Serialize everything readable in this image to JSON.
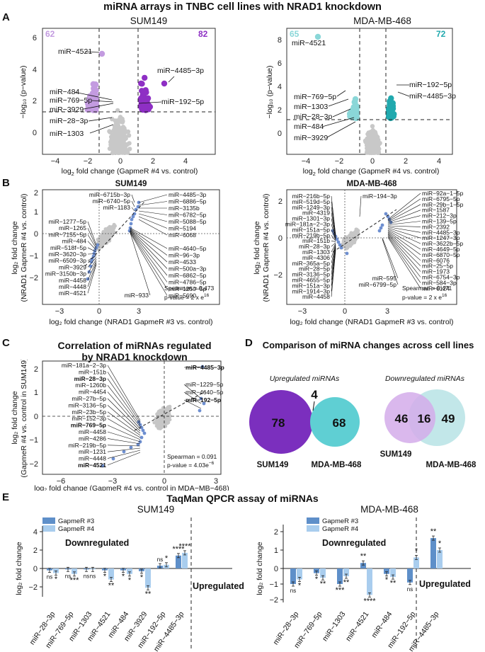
{
  "figure_title": "miRNA arrays in TNBC cell lines with NRAD1 knockdown",
  "panel_labels": {
    "A": "A",
    "B": "B",
    "C": "C",
    "D": "D",
    "E": "E"
  },
  "panelA": {
    "sum149": {
      "title": "SUM149",
      "count_down": "62",
      "count_up": "82",
      "xlabel_a": "log",
      "xlabel_sub": "2",
      "xlabel_b": " fold change (GapmeR #4 vs. control)",
      "ylabel": "−log₁₀ (p−value)",
      "xticks": [
        "−4",
        "−2",
        "0",
        "2",
        "4"
      ],
      "yticks": [
        "0",
        "2",
        "4",
        "6"
      ],
      "labels": [
        "miR−4521",
        "miR−4485−3p",
        "miR−484",
        "miR−769−5p",
        "miR−3929",
        "miR−192−5p",
        "miR−28−3p",
        "miR−1303"
      ],
      "colors": {
        "down": "#C39BE0",
        "up": "#8E2FC4"
      }
    },
    "mda": {
      "title": "MDA-MB-468",
      "count_down": "65",
      "count_up": "72",
      "xlabel_a": "log",
      "xlabel_sub": "2",
      "xlabel_b": " fold change (GapmeR #4 vs. control)",
      "ylabel": "−log₁₀ (p−value)",
      "xticks": [
        "−4",
        "−2",
        "0",
        "2",
        "4"
      ],
      "yticks": [
        "0",
        "2",
        "4",
        "6",
        "8"
      ],
      "labels": [
        "miR−4521",
        "miR−192−5p",
        "miR−4485−3p",
        "miR−769−5p",
        "miR−1303",
        "miR−28−3p",
        "miR−484",
        "miR−3929"
      ],
      "colors": {
        "down": "#8AD7D8",
        "up": "#21A9AE"
      }
    }
  },
  "panelB": {
    "sum149": {
      "title": "SUM149",
      "ylabel1": "log₂ fold change",
      "ylabel2": "(NRAD1 GapmeR #4 vs. control)",
      "xlabel": "log₂ fold change (NRAD1 GapmeR #3 vs. control)",
      "xticks": [
        "−3",
        "0",
        "3"
      ],
      "yticks": [
        "2",
        "1",
        "0",
        "−1",
        "−2"
      ],
      "stats1": "Spearman = 0.473",
      "stats2": "p-value = 2 x e",
      "stats_exp": "16",
      "labels_left": [
        "miR−6715b−3p",
        "miR−6740−5p",
        "miR−1183",
        "miR−1277−5p",
        "miR−1265",
        "miR−7155−5p",
        "miR−484",
        "miR−518f−5p",
        "miR−3620−3p",
        "miR−6509−3p",
        "miR−3929",
        "miR−3150b−3p",
        "miR−4458",
        "miR−4448",
        "miR−4521"
      ],
      "labels_right": [
        "miR−4485−3p",
        "miR−6886−5p",
        "miR−3135b",
        "miR−6782−5p",
        "miR−5088−5p",
        "miR−5194",
        "miR−6068",
        "miR−4640−5p",
        "miR−96−3p",
        "miR−4533",
        "miR−500a−3p",
        "miR−6862−5p",
        "miR−4786−5p",
        "miR−1250−5p",
        "miR−5690",
        "miR−933"
      ]
    },
    "mda": {
      "title": "MDA-MB-468",
      "ylabel1": "log₂ fold change",
      "ylabel2": "(NRAD1 GapmeR #4 vs. control)",
      "xlabel": "log₂ fold change (NRAD1 GapmeR #3 vs. control)",
      "xticks": [
        "−3",
        "0",
        "3"
      ],
      "yticks": [
        "2",
        "0",
        "−2"
      ],
      "stats1": "Spearman = 0.471",
      "stats2": "p-value = 2 x e",
      "stats_exp": "16",
      "labels_left": [
        "miR−216b−5p",
        "miR−519d−5p",
        "miR−1249−3p",
        "miR−4319",
        "miR−1301−3p",
        "miR−181a−2−3p",
        "miR−151a−5p",
        "miR−219b−5p",
        "miR−151b",
        "miR−28−3p",
        "miR−1303",
        "miR−4306",
        "miR−365a−5p",
        "miR−28−5p",
        "miR−3136−5p",
        "miR−4655−5p",
        "miR−151a−3p",
        "miR−1914−3p",
        "miR−4458"
      ],
      "labels_mid": [
        "miR−194−3p",
        "miR−595",
        "miR−6799−5p"
      ],
      "labels_right": [
        "miR−92a−1−5p",
        "miR−6795−5p",
        "miR−29b−1−5p",
        "miR−1587",
        "miR−212−3p",
        "miR−139−5p",
        "miR−2392",
        "miR−4485−3p",
        "miR−1247−3p",
        "miR−3622b−5p",
        "miR−4649−5p",
        "miR−6870−5p",
        "miR−6076",
        "miR−25−5p",
        "miR−1973",
        "miR−6754−3p",
        "miR−584−3p",
        "miR−6124"
      ]
    }
  },
  "panelC": {
    "title1": "Correlation of miRNAs regulated",
    "title2": "by NRAD1 knockdown",
    "ylabel1": "log₂ fold change",
    "ylabel2": "(GapmeR #4 vs. control in SUM149)",
    "xlabel": "log₂ fold change (GapmeR #4 vs. control in MDA−MB−468)",
    "xticks": [
      "−6",
      "−3",
      "0",
      "3"
    ],
    "yticks": [
      "2",
      "1",
      "0",
      "−1",
      "−2"
    ],
    "stats1": "Spearman = 0.091",
    "stats2": "p-value = 4.03e",
    "stats_exp": "−6",
    "labels_left": [
      "miR−181a−2−3p",
      "miR−151b",
      "miR−28−3p",
      "miR−1260b",
      "miR−4454",
      "miR−27b−5p",
      "miR−3136−5p",
      "miR−23b−5p",
      "miR−152−3p",
      "miR−769−5p",
      "miR−4458",
      "miR−4286",
      "miR−219b−5p",
      "miR−1231",
      "miR−4448",
      "miR−4521"
    ],
    "labels_right": [
      "miR−4485−3p",
      "miR−1229−5p",
      "miR−4640−5p",
      "miR−192−5p"
    ]
  },
  "panelD": {
    "title": "Comparison of miRNA changes across cell lines",
    "up_label": "Upregulated miRNAs",
    "down_label": "Downregulated miRNAs",
    "up": {
      "left": "78",
      "overlap": "4",
      "right": "68"
    },
    "down": {
      "left": "46",
      "overlap": "16",
      "right": "49"
    },
    "set_left": "SUM149",
    "set_right": "MDA-MB-468",
    "colors": {
      "up_left": "#7B2FBE",
      "up_right": "#5FCFD3",
      "down_left": "#D4ABEA",
      "down_right": "#BFE6E8"
    }
  },
  "panelE": {
    "title": "TaqMan QPCR assay of miRNAs",
    "legend": [
      "GapmeR #3",
      "GapmeR #4"
    ],
    "colors": {
      "g3": "#5E8FC9",
      "g4": "#A9CDEE"
    },
    "ylabel": "log₂ fold change",
    "down_label": "Downregulated",
    "up_label": "Upregulated",
    "sum149": {
      "title": "SUM149",
      "ylim": [
        -3,
        4
      ],
      "yticks": [
        "4",
        "2",
        "0",
        "−2"
      ],
      "categories": [
        "miR−28−3p",
        "miR−769−5p",
        "miR−1303",
        "miR−4521",
        "miR−484",
        "miR−3929",
        "miR−192−5p",
        "miR−4485−3p"
      ],
      "g3": [
        -0.2,
        -0.1,
        -0.1,
        -0.2,
        -0.2,
        -0.3,
        0.3,
        1.4
      ],
      "g4": [
        -0.5,
        -0.6,
        -0.1,
        -1.2,
        -0.6,
        -2.1,
        0.4,
        1.7
      ],
      "sig_g3": [
        "ns",
        "ns",
        "ns",
        "*",
        "*",
        "*",
        "ns",
        "****"
      ],
      "sig_g4": [
        "*",
        "***",
        "ns",
        "**",
        "*",
        "**",
        "*",
        "****"
      ]
    },
    "mda": {
      "title": "MDA-MB-468",
      "ylim": [
        -2,
        2
      ],
      "yticks": [
        "2",
        "1",
        "0",
        "−1",
        "−2"
      ],
      "categories": [
        "miR−28−3p",
        "miR−769−5p",
        "miR−1303",
        "miR−4521",
        "miR−484",
        "miR−192−5p",
        "miR−4485−3p"
      ],
      "g3": [
        -1.0,
        -0.3,
        -1.0,
        0.3,
        -0.35,
        -0.9,
        1.65
      ],
      "g4": [
        -0.7,
        -0.6,
        -0.5,
        -1.7,
        -0.55,
        0.6,
        1.0
      ],
      "sig_g3": [
        "ns",
        "*",
        "***",
        "**",
        "*",
        "ns",
        "**"
      ],
      "sig_g4": [
        "*",
        "**",
        "**",
        "****",
        "**",
        "*",
        "*"
      ]
    }
  }
}
